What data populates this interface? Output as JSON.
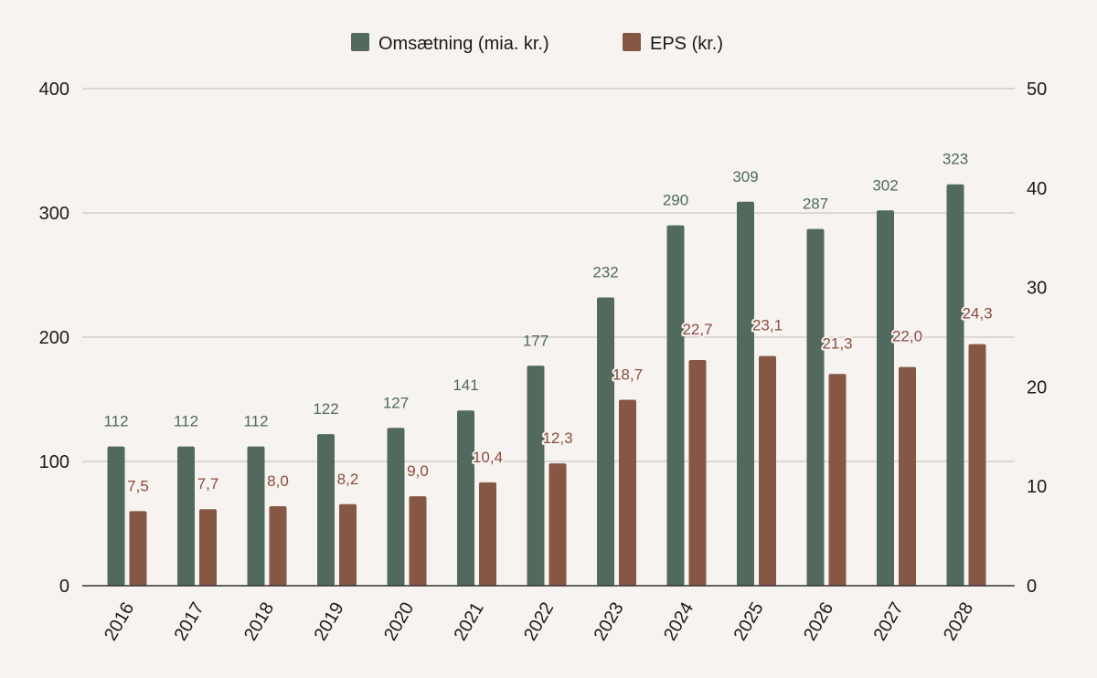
{
  "chart_data": {
    "type": "bar",
    "categories": [
      "2016",
      "2017",
      "2018",
      "2019",
      "2020",
      "2021",
      "2022",
      "2023",
      "2024",
      "2025",
      "2026",
      "2027",
      "2028"
    ],
    "series": [
      {
        "name": "Omsætning (mia. kr.)",
        "axis": "left",
        "color": "#526a5e",
        "values": [
          112,
          112,
          112,
          122,
          127,
          141,
          177,
          232,
          290,
          309,
          287,
          302,
          323
        ],
        "labels": [
          "112",
          "112",
          "112",
          "122",
          "127",
          "141",
          "177",
          "232",
          "290",
          "309",
          "287",
          "302",
          "323"
        ]
      },
      {
        "name": "EPS (kr.)",
        "axis": "right",
        "color": "#875746",
        "values": [
          7.5,
          7.7,
          8.0,
          8.2,
          9.0,
          10.4,
          12.3,
          18.7,
          22.7,
          23.1,
          21.3,
          22.0,
          24.3
        ],
        "labels": [
          "7,5",
          "7,7",
          "8,0",
          "8,2",
          "9,0",
          "10,4",
          "12,3",
          "18,7",
          "22,7",
          "23,1",
          "21,3",
          "22,0",
          "24,3"
        ]
      }
    ],
    "y_left": {
      "min": 0,
      "max": 400,
      "ticks": [
        "0",
        "100",
        "200",
        "300",
        "400"
      ]
    },
    "y_right": {
      "min": 0,
      "max": 50,
      "ticks": [
        "0",
        "10",
        "20",
        "30",
        "40",
        "50"
      ]
    },
    "grid": true,
    "legend": "top-center",
    "colors": {
      "background": "#f7f3f0",
      "label_revenue": "#4f6a5c",
      "label_eps": "#8a4d3d"
    }
  }
}
